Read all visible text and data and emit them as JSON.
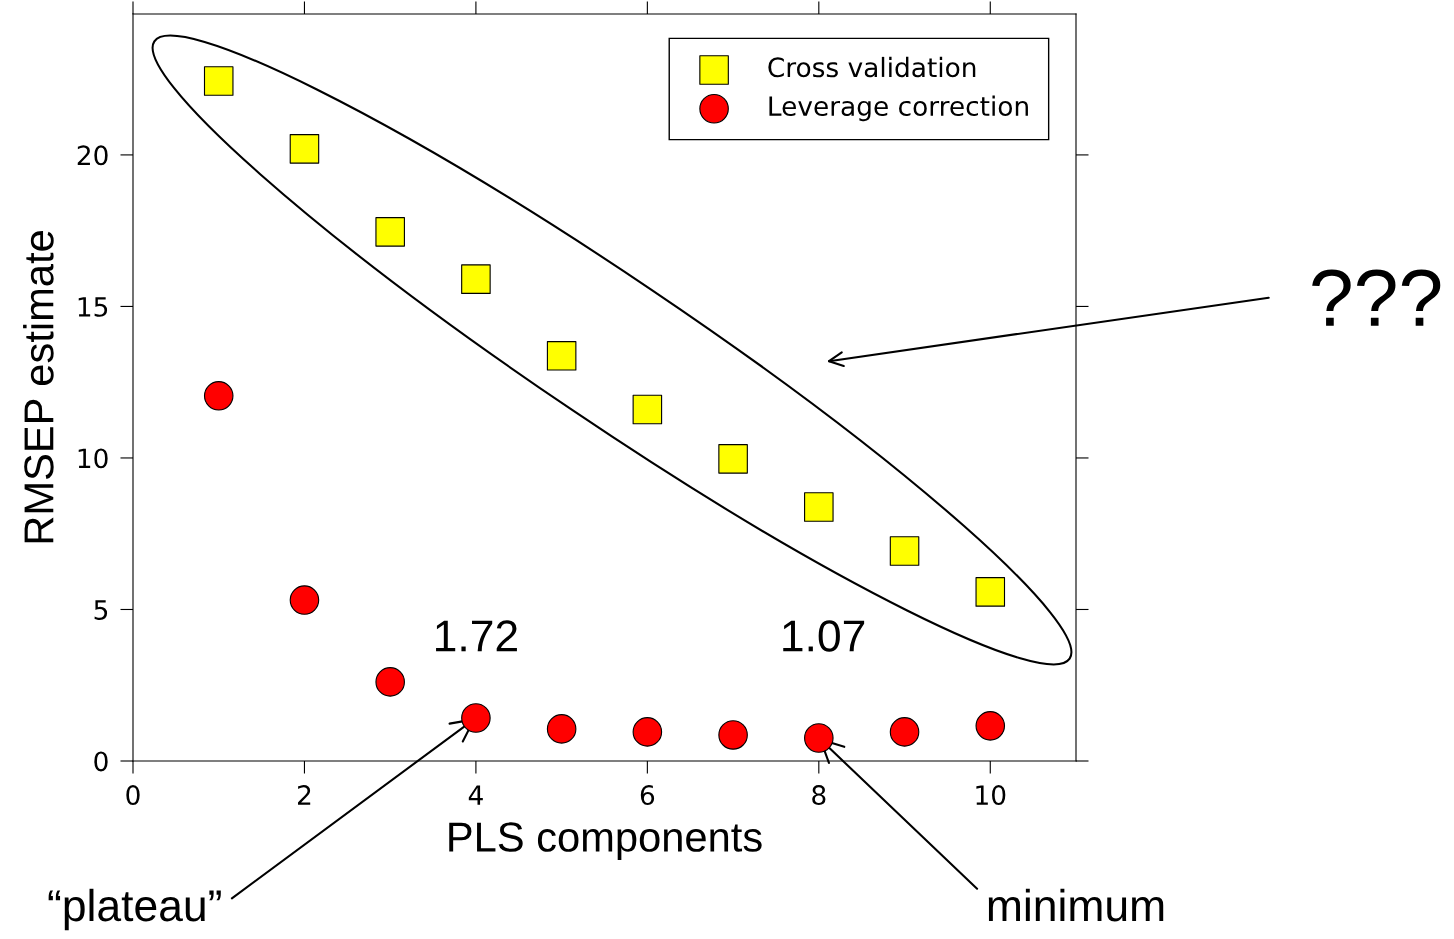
{
  "chart_data": {
    "type": "scatter",
    "xlabel": "PLS components",
    "ylabel": "RMSEP estimate",
    "xlim": [
      0,
      11
    ],
    "ylim": [
      0,
      24.65
    ],
    "xticks": [
      0,
      2,
      4,
      6,
      8,
      10
    ],
    "yticks": [
      0,
      5,
      10,
      15,
      20
    ],
    "x": [
      1,
      2,
      3,
      4,
      5,
      6,
      7,
      8,
      9,
      10
    ],
    "series": [
      {
        "name": "Cross validation",
        "color": "#ffff00",
        "marker": "square",
        "values": [
          22.44,
          20.2,
          17.46,
          15.9,
          13.37,
          11.6,
          9.97,
          8.38,
          6.93,
          5.58
        ]
      },
      {
        "name": "Leverage correction",
        "color": "#ff0000",
        "marker": "circle",
        "values": [
          12.05,
          5.31,
          2.61,
          1.42,
          1.06,
          0.96,
          0.86,
          0.76,
          0.96,
          1.16
        ]
      }
    ],
    "annotations": [
      "1.72",
      "1.07",
      "???",
      {
        "text": "“plateau”",
        "x": 4,
        "y": 1.42
      },
      {
        "text": "minimum",
        "x": 8,
        "y": 0.76
      }
    ],
    "legend": "top right",
    "grid": false
  }
}
